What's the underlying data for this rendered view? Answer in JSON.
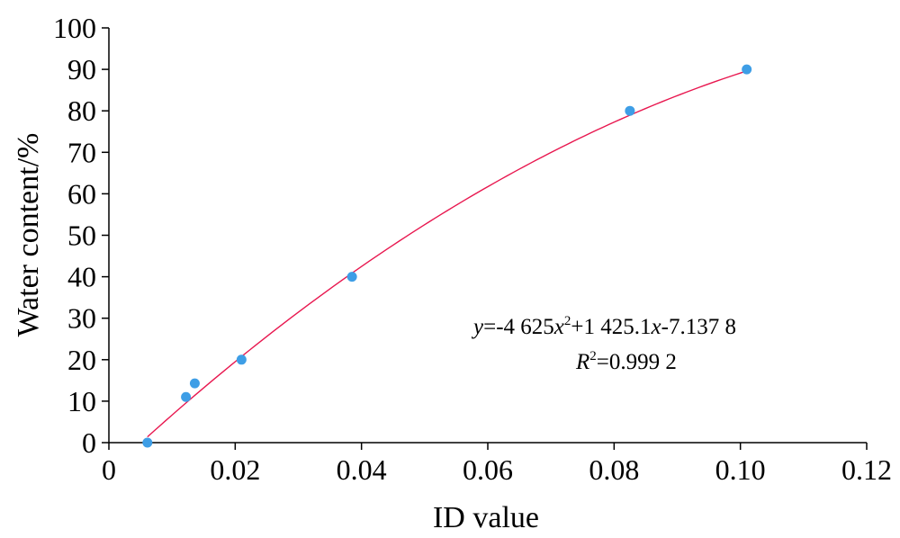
{
  "chart_data": {
    "type": "scatter",
    "xlabel": "ID value",
    "ylabel": "Water content/%",
    "xlim": [
      0,
      0.12
    ],
    "ylim": [
      0,
      100
    ],
    "x_ticks": [
      0,
      0.02,
      0.04,
      0.06,
      0.08,
      0.1,
      0.12
    ],
    "x_tick_labels": [
      "0",
      "0.02",
      "0.04",
      "0.06",
      "0.08",
      "0.10",
      "0.12"
    ],
    "y_ticks": [
      0,
      10,
      20,
      30,
      40,
      50,
      60,
      70,
      80,
      90,
      100
    ],
    "y_tick_labels": [
      "0",
      "10",
      "20",
      "30",
      "40",
      "50",
      "60",
      "70",
      "80",
      "90",
      "100"
    ],
    "grid": false,
    "legend": "none",
    "series": [
      {
        "color": "#3e9ee6",
        "points": [
          {
            "x": 0.0061,
            "y": 0
          },
          {
            "x": 0.0122,
            "y": 11
          },
          {
            "x": 0.0136,
            "y": 14.3
          },
          {
            "x": 0.021,
            "y": 20
          },
          {
            "x": 0.0385,
            "y": 40
          },
          {
            "x": 0.0825,
            "y": 80
          },
          {
            "x": 0.101,
            "y": 90
          }
        ]
      }
    ],
    "fit": {
      "type": "quadratic",
      "coefficients": {
        "a": -4625,
        "b": 1425.1,
        "c": -7.1378
      },
      "x_range": [
        0.0061,
        0.101
      ],
      "color": "#e8174f"
    },
    "annotations": {
      "eq_y": "y",
      "eq_part1": "=-4 625",
      "eq_x1": "x",
      "eq_sup1": "2",
      "eq_part2": "+1 425.1",
      "eq_x2": "x",
      "eq_part3": "-7.137 8",
      "r_label": "R",
      "r_sup": "2",
      "r_value": "=0.999 2"
    }
  }
}
